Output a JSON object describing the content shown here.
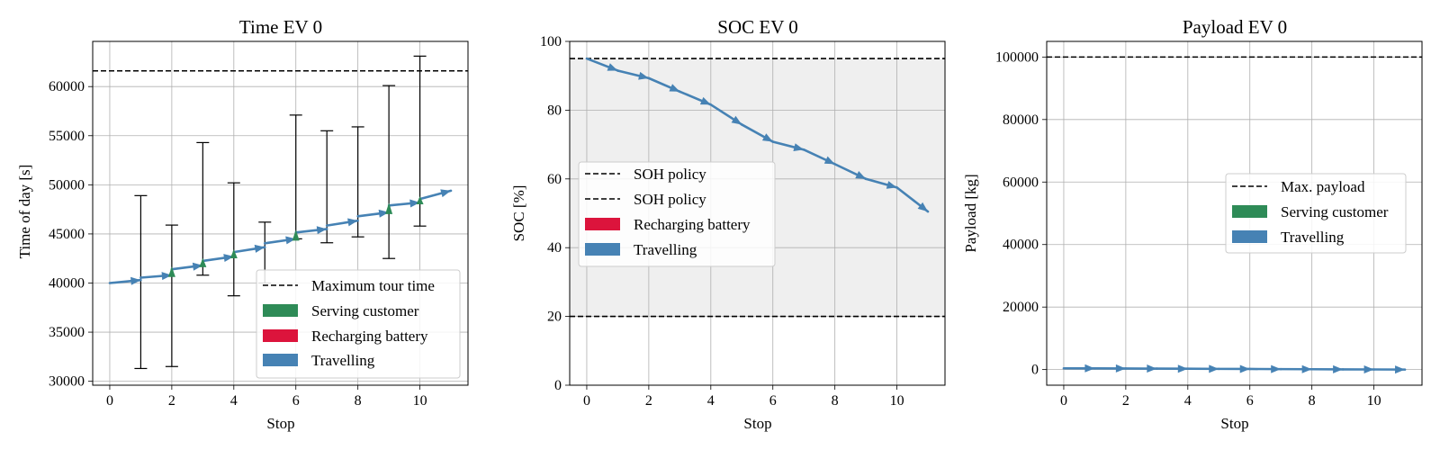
{
  "colors": {
    "travel": "#4682b4",
    "serve": "#2e8b57",
    "recharge": "#dc143c",
    "grid": "#b0b0b0",
    "soc_band": "#efefef"
  },
  "chart_data": [
    {
      "type": "line",
      "title": "Time EV 0",
      "xlabel": "Stop",
      "ylabel": "Time of day [s]",
      "xlim": [
        -0.55,
        11.55
      ],
      "ylim": [
        29600,
        64600
      ],
      "xticks": [
        0,
        2,
        4,
        6,
        8,
        10
      ],
      "yticks": [
        30000,
        35000,
        40000,
        45000,
        50000,
        55000,
        60000
      ],
      "max_tour_time": 61600,
      "travel_segments": [
        [
          0,
          40000,
          1,
          40300
        ],
        [
          1,
          40550,
          2,
          40800
        ],
        [
          2,
          41400,
          3,
          41800
        ],
        [
          3,
          42250,
          4,
          42700
        ],
        [
          4,
          43150,
          5,
          43650
        ],
        [
          5,
          44050,
          6,
          44500
        ],
        [
          6,
          45150,
          7,
          45500
        ],
        [
          7,
          45850,
          8,
          46350
        ],
        [
          8,
          46800,
          9,
          47200
        ],
        [
          9,
          47900,
          10,
          48200
        ],
        [
          10,
          48550,
          11,
          49400
        ]
      ],
      "serve_segments": [
        [
          2,
          40800,
          2,
          41400
        ],
        [
          3,
          41800,
          3,
          42250
        ],
        [
          4,
          42700,
          4,
          43150
        ],
        [
          6,
          44500,
          6,
          45150
        ],
        [
          9,
          47200,
          9,
          47900
        ],
        [
          10,
          48200,
          10,
          48550
        ]
      ],
      "time_windows": [
        [
          1,
          31300,
          48900
        ],
        [
          2,
          31500,
          45900
        ],
        [
          3,
          40800,
          54300
        ],
        [
          4,
          38700,
          50200
        ],
        [
          5,
          40000,
          46200
        ],
        [
          6,
          44500,
          57100
        ],
        [
          7,
          44100,
          55500
        ],
        [
          8,
          44700,
          55900
        ],
        [
          9,
          42500,
          60100
        ],
        [
          10,
          45800,
          63100
        ]
      ],
      "legend": [
        "Maximum tour time",
        "Serving customer",
        "Recharging battery",
        "Travelling"
      ]
    },
    {
      "type": "line",
      "title": "SOC EV 0",
      "xlabel": "Stop",
      "ylabel": "SOC [%]",
      "xlim": [
        -0.55,
        11.55
      ],
      "ylim": [
        0,
        100
      ],
      "xticks": [
        0,
        2,
        4,
        6,
        8,
        10
      ],
      "yticks": [
        0,
        20,
        40,
        60,
        80,
        100
      ],
      "soh_upper": 95,
      "soh_lower": 20,
      "x": [
        0,
        1,
        2,
        3,
        4,
        5,
        6,
        7,
        8,
        9,
        10,
        11
      ],
      "y": [
        95,
        91.5,
        89.3,
        85.4,
        81.6,
        75.8,
        70.8,
        68.5,
        64.3,
        60.0,
        57.5,
        50.5
      ],
      "legend": [
        "SOH policy",
        "SOH policy",
        "Recharging battery",
        "Travelling"
      ]
    },
    {
      "type": "line",
      "title": "Payload EV 0",
      "xlabel": "Stop",
      "ylabel": "Payload [kg]",
      "xlim": [
        -0.55,
        11.55
      ],
      "ylim": [
        -5000,
        105000
      ],
      "xticks": [
        0,
        2,
        4,
        6,
        8,
        10
      ],
      "yticks": [
        0,
        20000,
        40000,
        60000,
        80000,
        100000
      ],
      "max_payload": 100000,
      "x": [
        0,
        1,
        2,
        3,
        4,
        5,
        6,
        7,
        8,
        9,
        10,
        11
      ],
      "y": [
        400,
        380,
        340,
        300,
        260,
        220,
        190,
        150,
        110,
        70,
        40,
        0
      ],
      "legend": [
        "Max. payload",
        "Serving customer",
        "Travelling"
      ]
    }
  ]
}
